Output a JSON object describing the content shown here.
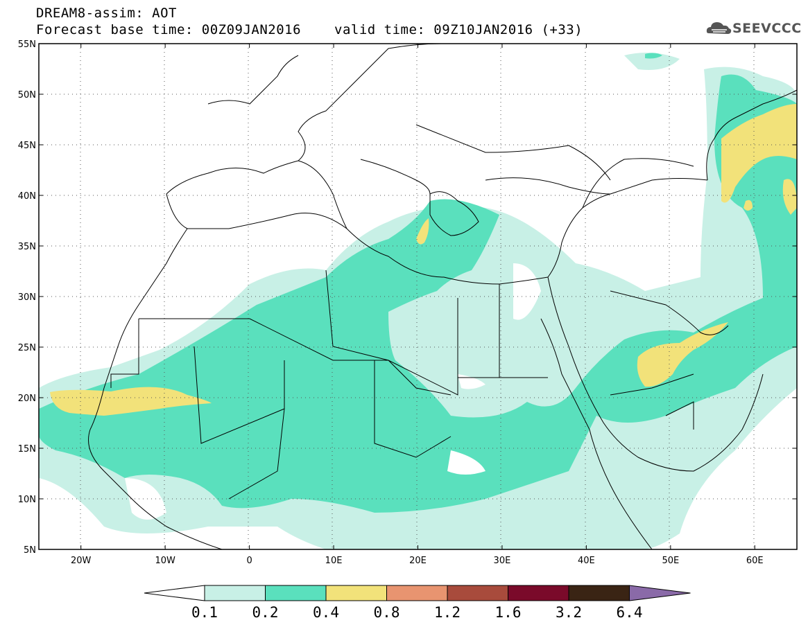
{
  "header": {
    "line1": "DREAM8-assim: AOT",
    "line2": "Forecast base time: 00Z09JAN2016",
    "line3": "valid time: 09Z10JAN2016 (+33)",
    "logo_text": "SEEVCCC"
  },
  "map": {
    "lon_range": [
      -25,
      65
    ],
    "lat_range": [
      5,
      55
    ],
    "lat_labels": [
      "55N",
      "50N",
      "45N",
      "40N",
      "35N",
      "30N",
      "25N",
      "20N",
      "15N",
      "10N",
      "5N"
    ],
    "lon_labels": [
      "20W",
      "10W",
      "0",
      "10E",
      "20E",
      "30E",
      "40E",
      "50E",
      "60E"
    ],
    "grid": "dotted"
  },
  "colorbar": {
    "levels": [
      "0.1",
      "0.2",
      "0.4",
      "0.8",
      "1.2",
      "1.6",
      "3.2",
      "6.4"
    ],
    "colors": [
      "#ffffff",
      "#c8f0e6",
      "#5ae0bd",
      "#f2e27a",
      "#e89470",
      "#a84b3c",
      "#7a0a2a",
      "#3a2414",
      "#8a6aa8"
    ]
  }
}
